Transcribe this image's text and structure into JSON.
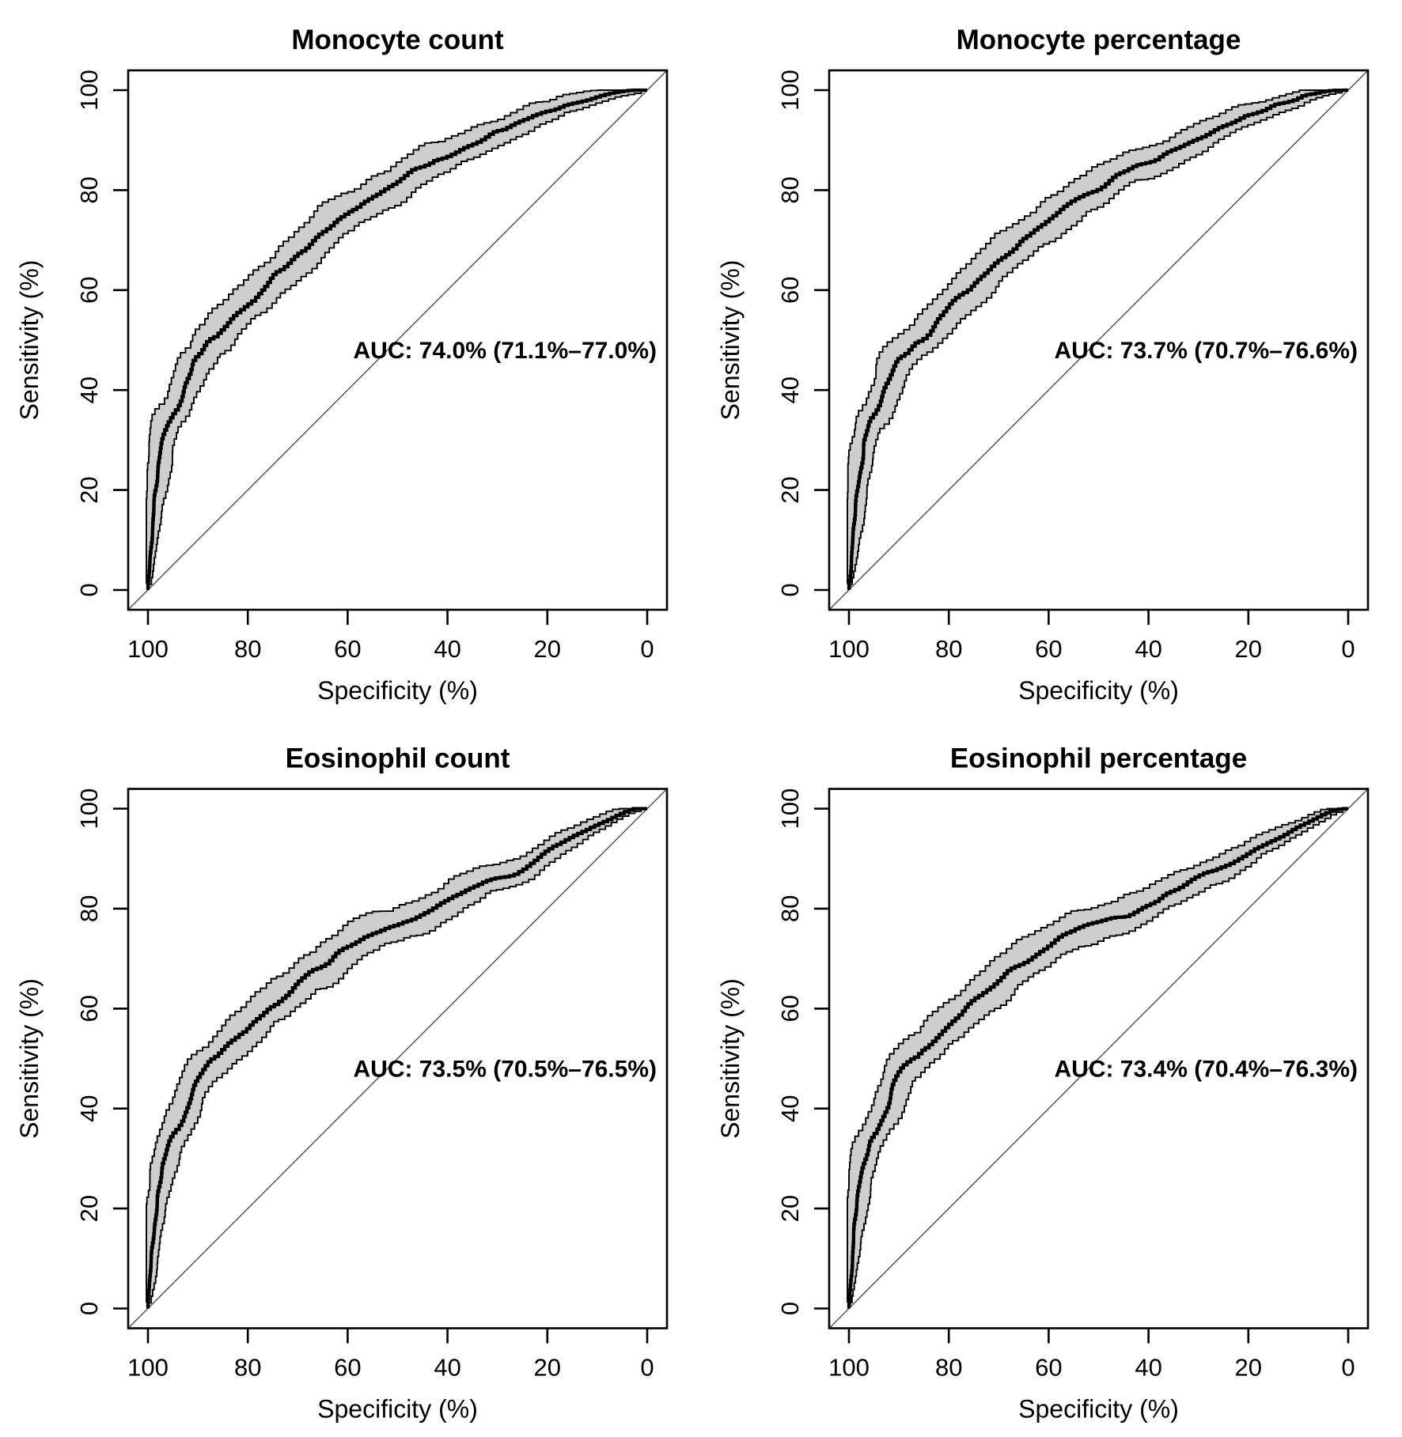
{
  "figure": {
    "description": "ROC curve panels with 95% confidence bands",
    "band_color": "#cecece",
    "curve_color": "#000000",
    "diagonal_color": "#555555",
    "background_color": "#ffffff"
  },
  "chart_data": [
    {
      "type": "line",
      "title": "Monocyte count",
      "xlabel": "Specificity (%)",
      "ylabel": "Sensitivity (%)",
      "x_ticks": [
        100,
        80,
        60,
        40,
        20,
        0
      ],
      "y_ticks": [
        0,
        20,
        40,
        60,
        80,
        100
      ],
      "x_reversed": true,
      "xlim": [
        100,
        0
      ],
      "ylim": [
        0,
        100
      ],
      "grid": false,
      "diagonal_reference": true,
      "annotation": "AUC: 74.0% (71.1%–77.0%)",
      "auc_percent": 74.0,
      "ci_low_percent": 71.1,
      "ci_high_percent": 77.0,
      "legend_position": "none",
      "roc_points": [
        [
          100,
          0
        ],
        [
          99.6,
          5
        ],
        [
          99.3,
          10
        ],
        [
          99,
          14
        ],
        [
          98.6,
          18
        ],
        [
          98.2,
          21
        ],
        [
          97.8,
          24
        ],
        [
          97.3,
          28
        ],
        [
          96.8,
          31
        ],
        [
          96.2,
          33
        ],
        [
          95.5,
          34
        ],
        [
          94.8,
          35
        ],
        [
          94,
          36
        ],
        [
          93.2,
          38
        ],
        [
          92.4,
          41
        ],
        [
          91.6,
          43
        ],
        [
          90.8,
          45
        ],
        [
          90,
          46
        ],
        [
          89,
          47
        ],
        [
          88,
          49
        ],
        [
          87,
          50
        ],
        [
          86,
          50.5
        ],
        [
          85,
          52
        ],
        [
          84,
          53
        ],
        [
          83,
          54
        ],
        [
          82,
          55
        ],
        [
          81,
          56
        ],
        [
          80,
          57
        ],
        [
          78.5,
          58
        ],
        [
          77,
          60
        ],
        [
          75.5,
          61.5
        ],
        [
          74,
          63
        ],
        [
          72.5,
          64
        ],
        [
          71,
          65.5
        ],
        [
          69.5,
          67
        ],
        [
          68,
          68
        ],
        [
          66.5,
          69.5
        ],
        [
          65,
          71
        ],
        [
          63.5,
          72.5
        ],
        [
          62,
          74
        ],
        [
          60.5,
          75
        ],
        [
          59,
          76
        ],
        [
          57.5,
          76.5
        ],
        [
          56,
          77.5
        ],
        [
          54,
          79
        ],
        [
          52,
          80
        ],
        [
          50,
          81
        ],
        [
          48,
          82.5
        ],
        [
          46,
          84
        ],
        [
          44,
          85
        ],
        [
          42,
          86
        ],
        [
          40,
          86.5
        ],
        [
          38,
          87.5
        ],
        [
          36,
          88.5
        ],
        [
          34,
          89.5
        ],
        [
          32,
          90.5
        ],
        [
          30,
          91.5
        ],
        [
          28,
          92
        ],
        [
          26,
          93
        ],
        [
          24,
          94
        ],
        [
          22,
          95
        ],
        [
          20,
          95.5
        ],
        [
          18,
          96
        ],
        [
          16,
          97
        ],
        [
          14,
          97.5
        ],
        [
          12,
          98
        ],
        [
          10,
          98.5
        ],
        [
          8,
          99
        ],
        [
          6,
          99.5
        ],
        [
          4,
          99.8
        ],
        [
          2,
          100
        ],
        [
          0,
          100
        ]
      ]
    },
    {
      "type": "line",
      "title": "Monocyte percentage",
      "xlabel": "Specificity (%)",
      "ylabel": "Sensitivity (%)",
      "x_ticks": [
        100,
        80,
        60,
        40,
        20,
        0
      ],
      "y_ticks": [
        0,
        20,
        40,
        60,
        80,
        100
      ],
      "x_reversed": true,
      "xlim": [
        100,
        0
      ],
      "ylim": [
        0,
        100
      ],
      "grid": false,
      "diagonal_reference": true,
      "annotation": "AUC: 73.7% (70.7%–76.6%)",
      "auc_percent": 73.7,
      "ci_low_percent": 70.7,
      "ci_high_percent": 76.6,
      "legend_position": "none",
      "roc_points": [
        [
          100,
          0
        ],
        [
          99.6,
          4
        ],
        [
          99.3,
          8
        ],
        [
          99,
          12
        ],
        [
          98.6,
          16
        ],
        [
          98.2,
          20
        ],
        [
          97.8,
          23
        ],
        [
          97.4,
          26
        ],
        [
          97,
          29
        ],
        [
          96.5,
          31
        ],
        [
          96,
          33
        ],
        [
          95.5,
          34
        ],
        [
          95,
          34.5
        ],
        [
          94.3,
          35.5
        ],
        [
          93.6,
          37
        ],
        [
          92.8,
          39
        ],
        [
          92,
          41
        ],
        [
          91.2,
          43.5
        ],
        [
          90.4,
          45.5
        ],
        [
          89.6,
          46.5
        ],
        [
          88.8,
          47
        ],
        [
          88,
          47.5
        ],
        [
          87,
          48.5
        ],
        [
          86,
          49.5
        ],
        [
          85,
          50
        ],
        [
          84,
          51
        ],
        [
          83,
          52.5
        ],
        [
          82,
          54
        ],
        [
          81,
          55
        ],
        [
          80,
          56
        ],
        [
          78.5,
          57.5
        ],
        [
          77,
          59
        ],
        [
          75.5,
          60
        ],
        [
          74,
          61.5
        ],
        [
          72.5,
          63
        ],
        [
          71,
          64.5
        ],
        [
          69.5,
          66
        ],
        [
          68,
          67.5
        ],
        [
          66.5,
          68.5
        ],
        [
          65,
          70
        ],
        [
          63.5,
          71
        ],
        [
          62,
          72
        ],
        [
          60.5,
          73
        ],
        [
          59,
          74.5
        ],
        [
          57.5,
          75.5
        ],
        [
          56,
          76.5
        ],
        [
          54,
          78
        ],
        [
          52,
          79
        ],
        [
          50,
          80
        ],
        [
          48,
          81.5
        ],
        [
          46,
          83
        ],
        [
          44,
          84
        ],
        [
          42,
          85
        ],
        [
          40,
          85.5
        ],
        [
          38,
          86
        ],
        [
          36,
          87
        ],
        [
          34,
          88
        ],
        [
          32,
          89
        ],
        [
          30,
          90
        ],
        [
          28,
          91
        ],
        [
          26,
          92
        ],
        [
          24,
          93
        ],
        [
          22,
          94
        ],
        [
          20,
          95
        ],
        [
          18,
          95.5
        ],
        [
          16,
          96
        ],
        [
          14,
          97
        ],
        [
          12,
          97.5
        ],
        [
          10,
          98
        ],
        [
          8,
          99
        ],
        [
          6,
          99.3
        ],
        [
          4,
          99.7
        ],
        [
          2,
          100
        ],
        [
          0,
          100
        ]
      ]
    },
    {
      "type": "line",
      "title": "Eosinophil count",
      "xlabel": "Specificity (%)",
      "ylabel": "Sensitivity (%)",
      "x_ticks": [
        100,
        80,
        60,
        40,
        20,
        0
      ],
      "y_ticks": [
        0,
        20,
        40,
        60,
        80,
        100
      ],
      "x_reversed": true,
      "xlim": [
        100,
        0
      ],
      "ylim": [
        0,
        100
      ],
      "grid": false,
      "diagonal_reference": true,
      "annotation": "AUC: 73.5% (70.5%–76.5%)",
      "auc_percent": 73.5,
      "ci_low_percent": 70.5,
      "ci_high_percent": 76.5,
      "legend_position": "none",
      "roc_points": [
        [
          100,
          0
        ],
        [
          99.7,
          4
        ],
        [
          99.4,
          8
        ],
        [
          99.1,
          12
        ],
        [
          98.8,
          16
        ],
        [
          98.4,
          19
        ],
        [
          98,
          22
        ],
        [
          97.5,
          25
        ],
        [
          97,
          28
        ],
        [
          96.4,
          30
        ],
        [
          95.8,
          32
        ],
        [
          95.2,
          33.5
        ],
        [
          94.5,
          35
        ],
        [
          93.8,
          36
        ],
        [
          93,
          37.5
        ],
        [
          92.2,
          39.5
        ],
        [
          91.4,
          42
        ],
        [
          90.6,
          44.5
        ],
        [
          90,
          46
        ],
        [
          89,
          47.5
        ],
        [
          88,
          48.5
        ],
        [
          87,
          49.5
        ],
        [
          86,
          50
        ],
        [
          85,
          51
        ],
        [
          84,
          52
        ],
        [
          83,
          53
        ],
        [
          82,
          54
        ],
        [
          81,
          55
        ],
        [
          80,
          55.5
        ],
        [
          78.5,
          57
        ],
        [
          77,
          58.5
        ],
        [
          75.5,
          60
        ],
        [
          74,
          61
        ],
        [
          72.5,
          62.5
        ],
        [
          71,
          63.5
        ],
        [
          69.5,
          65
        ],
        [
          68,
          66.5
        ],
        [
          66.5,
          67.5
        ],
        [
          65,
          68
        ],
        [
          63.5,
          69
        ],
        [
          62,
          70.5
        ],
        [
          60.5,
          71.5
        ],
        [
          59,
          72.5
        ],
        [
          57.5,
          73.5
        ],
        [
          56,
          74.5
        ],
        [
          54,
          75.5
        ],
        [
          52,
          76
        ],
        [
          50,
          76.5
        ],
        [
          48,
          77.5
        ],
        [
          46,
          78
        ],
        [
          44,
          79
        ],
        [
          42,
          80
        ],
        [
          40,
          81
        ],
        [
          38,
          82.5
        ],
        [
          36,
          83.5
        ],
        [
          34,
          84.5
        ],
        [
          32,
          85.5
        ],
        [
          30,
          86
        ],
        [
          28,
          86.5
        ],
        [
          26,
          87
        ],
        [
          24,
          88
        ],
        [
          22,
          89.5
        ],
        [
          20,
          91
        ],
        [
          18,
          92.5
        ],
        [
          16,
          93.5
        ],
        [
          14,
          94.5
        ],
        [
          12,
          95.5
        ],
        [
          10,
          96.5
        ],
        [
          8,
          97.5
        ],
        [
          6,
          98.5
        ],
        [
          4,
          99.3
        ],
        [
          2,
          100
        ],
        [
          0,
          100
        ]
      ]
    },
    {
      "type": "line",
      "title": "Eosinophil percentage",
      "xlabel": "Specificity (%)",
      "ylabel": "Sensitivity (%)",
      "x_ticks": [
        100,
        80,
        60,
        40,
        20,
        0
      ],
      "y_ticks": [
        0,
        20,
        40,
        60,
        80,
        100
      ],
      "x_reversed": true,
      "xlim": [
        100,
        0
      ],
      "ylim": [
        0,
        100
      ],
      "grid": false,
      "diagonal_reference": true,
      "annotation": "AUC: 73.4% (70.4%–76.3%)",
      "auc_percent": 73.4,
      "ci_low_percent": 70.4,
      "ci_high_percent": 76.3,
      "legend_position": "none",
      "roc_points": [
        [
          100,
          0
        ],
        [
          99.7,
          4
        ],
        [
          99.4,
          9
        ],
        [
          99.1,
          13
        ],
        [
          98.8,
          17
        ],
        [
          98.4,
          20
        ],
        [
          98,
          23
        ],
        [
          97.5,
          26
        ],
        [
          97,
          29
        ],
        [
          96.4,
          31
        ],
        [
          95.8,
          33
        ],
        [
          95.2,
          34
        ],
        [
          94.5,
          35
        ],
        [
          93.8,
          36.5
        ],
        [
          93,
          38
        ],
        [
          92.2,
          40
        ],
        [
          91.4,
          42.5
        ],
        [
          90.6,
          45
        ],
        [
          90,
          46.5
        ],
        [
          89,
          48
        ],
        [
          88,
          49
        ],
        [
          87,
          50
        ],
        [
          86,
          50.5
        ],
        [
          85,
          51.5
        ],
        [
          84,
          52
        ],
        [
          83,
          53
        ],
        [
          82,
          54.5
        ],
        [
          81,
          55.5
        ],
        [
          80,
          56.5
        ],
        [
          78.5,
          58
        ],
        [
          77,
          59
        ],
        [
          75.5,
          60.5
        ],
        [
          74,
          62
        ],
        [
          72.5,
          63
        ],
        [
          71,
          64
        ],
        [
          69.5,
          65.5
        ],
        [
          68,
          67
        ],
        [
          66.5,
          68
        ],
        [
          65,
          69
        ],
        [
          63.5,
          70
        ],
        [
          62,
          71
        ],
        [
          60.5,
          72
        ],
        [
          59,
          73
        ],
        [
          57.5,
          74
        ],
        [
          56,
          75
        ],
        [
          54,
          76
        ],
        [
          52,
          76.5
        ],
        [
          50,
          77
        ],
        [
          48,
          77.5
        ],
        [
          46,
          78
        ],
        [
          44,
          78.5
        ],
        [
          42,
          79.5
        ],
        [
          40,
          80.5
        ],
        [
          38,
          81.5
        ],
        [
          36,
          83
        ],
        [
          34,
          84
        ],
        [
          32,
          85
        ],
        [
          30,
          86
        ],
        [
          28,
          87
        ],
        [
          26,
          87.5
        ],
        [
          24,
          88.5
        ],
        [
          22,
          89.5
        ],
        [
          20,
          90.5
        ],
        [
          18,
          92
        ],
        [
          16,
          93
        ],
        [
          14,
          94
        ],
        [
          12,
          95
        ],
        [
          10,
          96
        ],
        [
          8,
          97
        ],
        [
          6,
          98
        ],
        [
          4,
          99
        ],
        [
          2,
          99.8
        ],
        [
          0,
          100
        ]
      ]
    }
  ]
}
